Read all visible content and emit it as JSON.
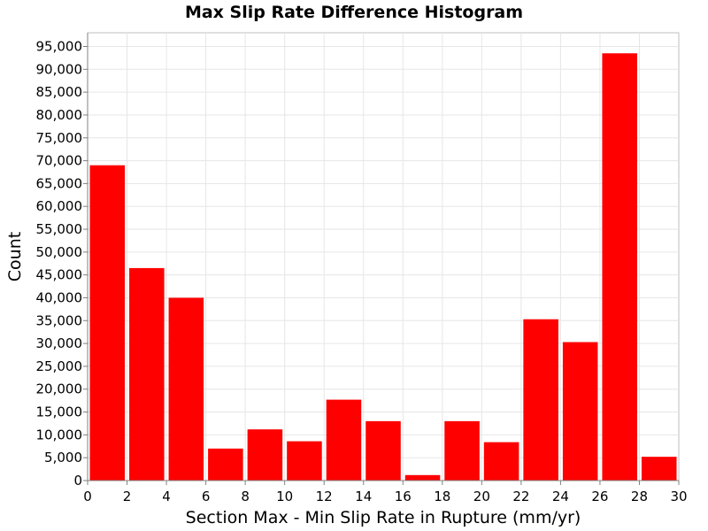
{
  "chart_data": {
    "type": "bar",
    "title": "Max Slip Rate Difference Histogram",
    "xlabel": "Section Max - Min Slip Rate in Rupture (mm/yr)",
    "ylabel": "Count",
    "xlim": [
      0,
      30
    ],
    "ylim": [
      0,
      98000
    ],
    "bin_width": 2,
    "bins": [
      {
        "x0": 0,
        "x1": 2,
        "value": 69000
      },
      {
        "x0": 2,
        "x1": 4,
        "value": 46500
      },
      {
        "x0": 4,
        "x1": 6,
        "value": 40000
      },
      {
        "x0": 6,
        "x1": 8,
        "value": 7000
      },
      {
        "x0": 8,
        "x1": 10,
        "value": 11200
      },
      {
        "x0": 10,
        "x1": 12,
        "value": 8600
      },
      {
        "x0": 12,
        "x1": 14,
        "value": 17700
      },
      {
        "x0": 14,
        "x1": 16,
        "value": 13000
      },
      {
        "x0": 16,
        "x1": 18,
        "value": 1200
      },
      {
        "x0": 18,
        "x1": 20,
        "value": 13000
      },
      {
        "x0": 20,
        "x1": 22,
        "value": 8400
      },
      {
        "x0": 22,
        "x1": 24,
        "value": 35300
      },
      {
        "x0": 24,
        "x1": 26,
        "value": 30300
      },
      {
        "x0": 26,
        "x1": 28,
        "value": 93500
      },
      {
        "x0": 28,
        "x1": 30,
        "value": 5200
      }
    ],
    "x_ticks": [
      "0",
      "2",
      "4",
      "6",
      "8",
      "10",
      "12",
      "14",
      "16",
      "18",
      "20",
      "22",
      "24",
      "26",
      "28",
      "30"
    ],
    "y_ticks": [
      "0",
      "5,000",
      "10,000",
      "15,000",
      "20,000",
      "25,000",
      "30,000",
      "35,000",
      "40,000",
      "45,000",
      "50,000",
      "55,000",
      "60,000",
      "65,000",
      "70,000",
      "75,000",
      "80,000",
      "85,000",
      "90,000",
      "95,000"
    ],
    "grid": true,
    "bar_color": "#ff0000",
    "grid_color": "#e6e6e6",
    "legend": "none"
  }
}
